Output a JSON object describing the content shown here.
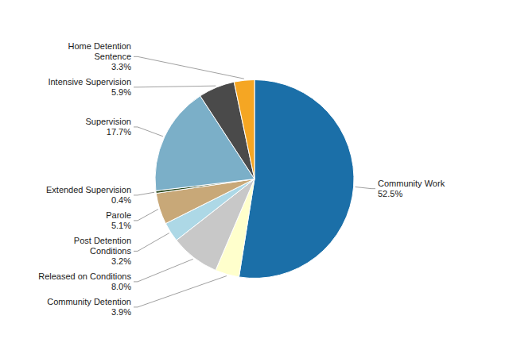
{
  "chart_data": {
    "type": "pie",
    "categories": [
      "Community Work",
      "Community Detention",
      "Released on Conditions",
      "Post Detention\nConditions",
      "Parole",
      "Extended Supervision",
      "Supervision",
      "Intensive Supervision",
      "Home Detention\nSentence"
    ],
    "values": [
      52.5,
      3.9,
      8.0,
      3.2,
      5.1,
      0.4,
      17.7,
      5.9,
      3.3
    ],
    "value_labels": [
      "52.5%",
      "3.9%",
      "8.0%",
      "3.2%",
      "5.1%",
      "0.4%",
      "17.7%",
      "5.9%",
      "3.3%"
    ],
    "colors": [
      "#1B6FA8",
      "#FFFFCC",
      "#C8C8C8",
      "#ADD8E6",
      "#C8A878",
      "#2D4A1E",
      "#7BAFC8",
      "#4A4A4A",
      "#F5A623"
    ],
    "data_labels": true
  }
}
